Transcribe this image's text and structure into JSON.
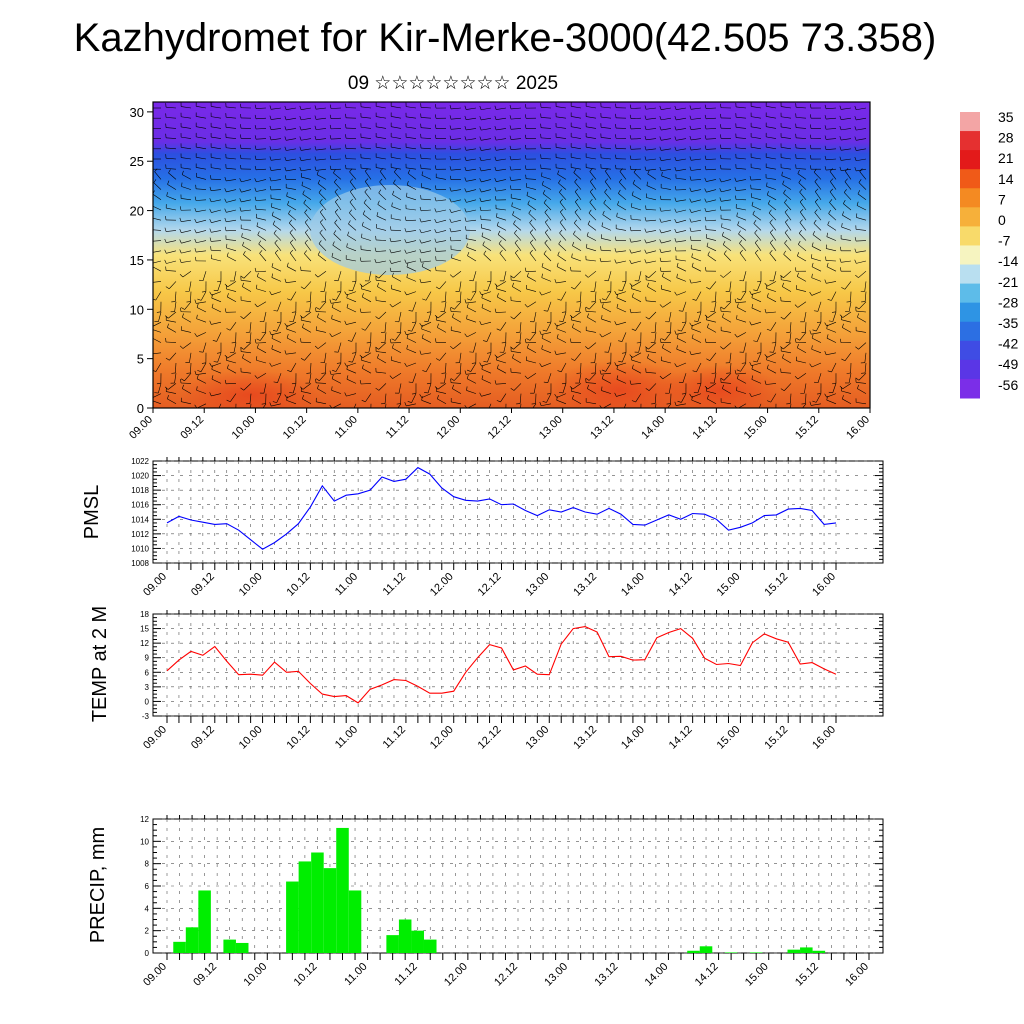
{
  "title": "Kazhydromet for Kir-Merke-3000(42.505 73.358)",
  "subtitle": "09 ☆☆☆☆☆☆☆☆ 2025",
  "time_ticks": [
    "09.00",
    "09.12",
    "10.00",
    "10.12",
    "11.00",
    "11.12",
    "12.00",
    "12.12",
    "13.00",
    "13.12",
    "14.00",
    "14.12",
    "15.00",
    "15.12",
    "16.00"
  ],
  "colorbar_labels": [
    "35",
    "28",
    "21",
    "14",
    "7",
    "0",
    "-7",
    "-14",
    "-21",
    "-28",
    "-35",
    "-42",
    "-49",
    "-56"
  ],
  "colors": {
    "pmsl": "#0000ff",
    "temp": "#ff0000",
    "precip": "#00ee00"
  },
  "chart_data": [
    {
      "type": "heatmap",
      "title": "",
      "xlabel": "",
      "ylabel": "",
      "x": [
        "09.00",
        "09.12",
        "10.00",
        "10.12",
        "11.00",
        "11.12",
        "12.00",
        "12.12",
        "13.00",
        "13.12",
        "14.00",
        "14.12",
        "15.00",
        "15.12",
        "16.00"
      ],
      "ylim": [
        0,
        31
      ],
      "yticks": [
        0,
        5,
        10,
        15,
        20,
        25,
        30
      ],
      "colorbar": {
        "min": -56,
        "max": 35,
        "labels": [
          "35",
          "28",
          "21",
          "14",
          "7",
          "0",
          "-7",
          "-14",
          "-21",
          "-28",
          "-35",
          "-42",
          "-49",
          "-56"
        ]
      },
      "overlay": "wind barbs"
    },
    {
      "type": "line",
      "ylabel": "PMSL",
      "ylim": [
        1008,
        1022
      ],
      "yticks": [
        1008,
        1010,
        1012,
        1014,
        1016,
        1018,
        1020,
        1022
      ],
      "x": [
        "09.00",
        "09.03",
        "09.06",
        "09.09",
        "09.12",
        "09.15",
        "09.18",
        "09.21",
        "10.00",
        "10.03",
        "10.06",
        "10.09",
        "10.12",
        "10.15",
        "10.18",
        "10.21",
        "11.00",
        "11.03",
        "11.06",
        "11.09",
        "11.12",
        "11.15",
        "11.18",
        "11.21",
        "12.00",
        "12.03",
        "12.06",
        "12.09",
        "12.12",
        "12.15",
        "12.18",
        "12.21",
        "13.00",
        "13.03",
        "13.06",
        "13.09",
        "13.12",
        "13.15",
        "13.18",
        "13.21",
        "14.00",
        "14.03",
        "14.06",
        "14.09",
        "14.12",
        "14.15",
        "14.18",
        "14.21",
        "15.00",
        "15.03",
        "15.06",
        "15.09",
        "15.12",
        "15.15",
        "15.18",
        "15.21",
        "16.00"
      ],
      "series": [
        {
          "values": [
            1013.5,
            1014.4,
            1013.9,
            1013.6,
            1013.3,
            1013.4,
            1012.5,
            1011.2,
            1009.9,
            1010.8,
            1012.0,
            1013.4,
            1015.7,
            1018.6,
            1016.5,
            1017.3,
            1017.5,
            1018.0,
            1019.8,
            1019.2,
            1019.5,
            1021.1,
            1020.2,
            1018.3,
            1017.1,
            1016.6,
            1016.5,
            1016.8,
            1016.0,
            1016.1,
            1015.2,
            1014.5,
            1015.3,
            1015.0,
            1015.6,
            1015.0,
            1014.7,
            1015.5,
            1014.7,
            1013.3,
            1013.2,
            1013.9,
            1014.6,
            1014.0,
            1014.8,
            1014.7,
            1014.0,
            1012.5,
            1012.9,
            1013.5,
            1014.5,
            1014.6,
            1015.4,
            1015.5,
            1015.2,
            1013.3,
            1013.5
          ]
        }
      ]
    },
    {
      "type": "line",
      "ylabel": "TEMP at 2 M",
      "ylim": [
        -3,
        18
      ],
      "yticks": [
        -3,
        0,
        3,
        6,
        9,
        12,
        15,
        18
      ],
      "x": [
        "09.00",
        "09.03",
        "09.06",
        "09.09",
        "09.12",
        "09.15",
        "09.18",
        "09.21",
        "10.00",
        "10.03",
        "10.06",
        "10.09",
        "10.12",
        "10.15",
        "10.18",
        "10.21",
        "11.00",
        "11.03",
        "11.06",
        "11.09",
        "11.12",
        "11.15",
        "11.18",
        "11.21",
        "12.00",
        "12.03",
        "12.06",
        "12.09",
        "12.12",
        "12.15",
        "12.18",
        "12.21",
        "13.00",
        "13.03",
        "13.06",
        "13.09",
        "13.12",
        "13.15",
        "13.18",
        "13.21",
        "14.00",
        "14.03",
        "14.06",
        "14.09",
        "14.12",
        "14.15",
        "14.18",
        "14.21",
        "15.00",
        "15.03",
        "15.06",
        "15.09",
        "15.12",
        "15.15",
        "15.18",
        "15.21",
        "16.00"
      ],
      "series": [
        {
          "values": [
            6.3,
            8.5,
            10.3,
            9.5,
            11.3,
            8.3,
            5.5,
            5.6,
            5.4,
            8.1,
            6.0,
            6.2,
            3.7,
            1.5,
            1.0,
            1.2,
            -0.3,
            2.5,
            3.4,
            4.5,
            4.3,
            3.1,
            1.7,
            1.7,
            2.1,
            6.0,
            9.0,
            11.7,
            11.0,
            6.5,
            7.3,
            5.6,
            5.5,
            11.8,
            15.0,
            15.4,
            14.3,
            9.2,
            9.3,
            8.5,
            8.6,
            13.1,
            14.2,
            15.0,
            13.0,
            8.9,
            7.6,
            7.8,
            7.4,
            12.1,
            13.9,
            12.9,
            12.2,
            7.7,
            8.0,
            6.7,
            5.6
          ]
        }
      ]
    },
    {
      "type": "bar",
      "ylabel": "PRECIP, mm",
      "ylim": [
        0,
        12
      ],
      "yticks": [
        0,
        2,
        4,
        6,
        8,
        10,
        12
      ],
      "x": [
        "09.00",
        "09.03",
        "09.06",
        "09.09",
        "09.12",
        "09.15",
        "09.18",
        "09.21",
        "10.00",
        "10.03",
        "10.06",
        "10.09",
        "10.12",
        "10.15",
        "10.18",
        "10.21",
        "11.00",
        "11.03",
        "11.06",
        "11.09",
        "11.12",
        "11.15",
        "11.18",
        "11.21",
        "12.00",
        "12.03",
        "12.06",
        "12.09",
        "12.12",
        "12.15",
        "12.18",
        "12.21",
        "13.00",
        "13.03",
        "13.06",
        "13.09",
        "13.12",
        "13.15",
        "13.18",
        "13.21",
        "14.00",
        "14.03",
        "14.06",
        "14.09",
        "14.12",
        "14.15",
        "14.18",
        "14.21",
        "15.00",
        "15.03",
        "15.06",
        "15.09",
        "15.12",
        "15.15",
        "15.18",
        "15.21",
        "16.00"
      ],
      "values": [
        0,
        1.0,
        2.3,
        5.6,
        0,
        1.2,
        0.9,
        0,
        0,
        0,
        6.4,
        8.2,
        9.0,
        7.6,
        11.2,
        5.6,
        0,
        0,
        1.6,
        3.0,
        2.0,
        1.2,
        0,
        0,
        0,
        0,
        0,
        0,
        0,
        0,
        0,
        0,
        0,
        0,
        0,
        0,
        0,
        0,
        0,
        0,
        0,
        0,
        0.2,
        0.6,
        0,
        0.05,
        0,
        0.05,
        0,
        0,
        0.3,
        0.5,
        0.2,
        0,
        0,
        0,
        0
      ]
    }
  ]
}
